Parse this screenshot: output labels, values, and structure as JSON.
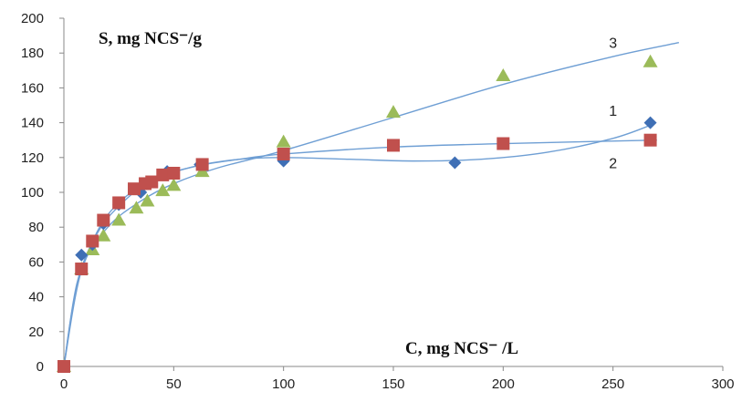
{
  "chart_data": {
    "type": "scatter",
    "title": "",
    "xlabel": "C, mg NCS⁻ /L",
    "ylabel": "S, mg NCS⁻/g",
    "xlim": [
      0,
      300
    ],
    "ylim": [
      0,
      200
    ],
    "x_ticks": [
      0,
      50,
      100,
      150,
      200,
      250,
      300
    ],
    "y_ticks": [
      0,
      20,
      40,
      60,
      80,
      100,
      120,
      140,
      160,
      180,
      200
    ],
    "grid": false,
    "legend": "none",
    "series": [
      {
        "label": "1",
        "marker": "diamond",
        "color": "#3f6fb5",
        "points": [
          [
            0,
            0
          ],
          [
            8,
            64
          ],
          [
            13,
            70
          ],
          [
            18,
            82
          ],
          [
            25,
            93
          ],
          [
            35,
            100
          ],
          [
            47,
            112
          ],
          [
            62,
            116
          ],
          [
            100,
            118
          ],
          [
            178,
            117
          ],
          [
            267,
            140
          ]
        ],
        "trend": [
          [
            0,
            0
          ],
          [
            6,
            48
          ],
          [
            15,
            76
          ],
          [
            25,
            92
          ],
          [
            40,
            107
          ],
          [
            60,
            115
          ],
          [
            80,
            119
          ],
          [
            100,
            120
          ],
          [
            130,
            119
          ],
          [
            160,
            118
          ],
          [
            190,
            119
          ],
          [
            220,
            123
          ],
          [
            250,
            131
          ],
          [
            268,
            139
          ]
        ]
      },
      {
        "label": "2",
        "marker": "square",
        "color": "#c0504d",
        "points": [
          [
            0,
            0
          ],
          [
            8,
            56
          ],
          [
            13,
            72
          ],
          [
            18,
            84
          ],
          [
            25,
            94
          ],
          [
            32,
            102
          ],
          [
            37,
            105
          ],
          [
            40,
            106
          ],
          [
            45,
            110
          ],
          [
            50,
            111
          ],
          [
            63,
            116
          ],
          [
            100,
            122
          ],
          [
            150,
            127
          ],
          [
            200,
            128
          ],
          [
            267,
            130
          ]
        ],
        "trend": [
          [
            0,
            0
          ],
          [
            6,
            47
          ],
          [
            15,
            77
          ],
          [
            25,
            94
          ],
          [
            40,
            107
          ],
          [
            60,
            115
          ],
          [
            80,
            119
          ],
          [
            100,
            122
          ],
          [
            150,
            126
          ],
          [
            200,
            128
          ],
          [
            270,
            130
          ]
        ]
      },
      {
        "label": "3",
        "marker": "triangle",
        "color": "#9bbb59",
        "points": [
          [
            0,
            0
          ],
          [
            8,
            56
          ],
          [
            13,
            67
          ],
          [
            18,
            75
          ],
          [
            25,
            84
          ],
          [
            33,
            91
          ],
          [
            38,
            95
          ],
          [
            45,
            101
          ],
          [
            50,
            104
          ],
          [
            63,
            112
          ],
          [
            100,
            129
          ],
          [
            150,
            146
          ],
          [
            200,
            167
          ],
          [
            267,
            175
          ]
        ],
        "trend": [
          [
            0,
            0
          ],
          [
            8,
            55
          ],
          [
            20,
            80
          ],
          [
            35,
            95
          ],
          [
            50,
            105
          ],
          [
            70,
            114
          ],
          [
            100,
            124
          ],
          [
            150,
            143
          ],
          [
            200,
            162
          ],
          [
            250,
            178
          ],
          [
            280,
            186
          ]
        ]
      }
    ]
  }
}
